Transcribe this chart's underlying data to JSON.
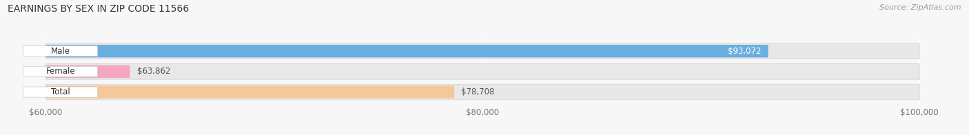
{
  "title": "EARNINGS BY SEX IN ZIP CODE 11566",
  "source": "Source: ZipAtlas.com",
  "categories": [
    "Male",
    "Female",
    "Total"
  ],
  "values": [
    93072,
    63862,
    78708
  ],
  "bar_colors": [
    "#6aafe0",
    "#f4a7bf",
    "#f5c899"
  ],
  "value_labels": [
    "$93,072",
    "$63,862",
    "$78,708"
  ],
  "xmin": 60000,
  "xmax": 100000,
  "xticks": [
    60000,
    80000,
    100000
  ],
  "xtick_labels": [
    "$60,000",
    "$80,000",
    "$100,000"
  ],
  "bar_height": 0.62,
  "background_color": "#f7f7f7",
  "bar_bg_color": "#e8e8e8",
  "label_inside_bar": [
    true,
    false,
    false
  ],
  "value_inside_bar": [
    true,
    false,
    false
  ]
}
